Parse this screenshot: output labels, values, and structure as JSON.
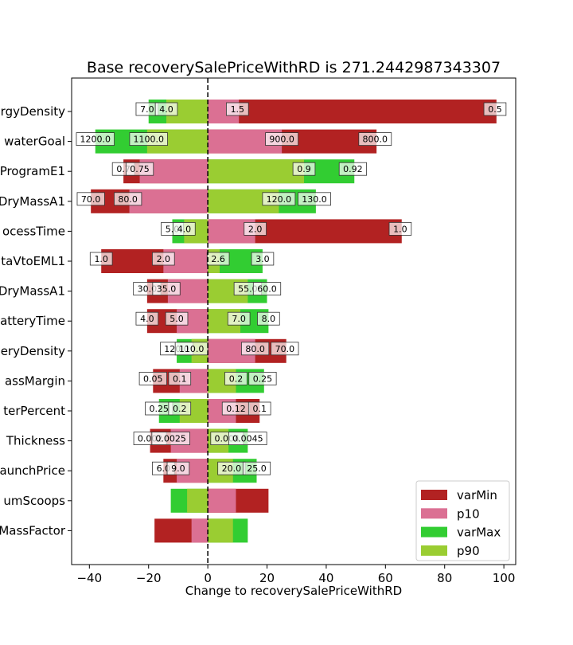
{
  "chart_data": {
    "type": "bar",
    "orientation": "horizontal",
    "style": "tornado",
    "title": "Base recoverySalePriceWithRD is 271.2442987343307",
    "xlabel": "Change to recoverySalePriceWithRD",
    "ylabel": "",
    "xlim": [
      -46,
      104
    ],
    "xticks": [
      -40,
      -20,
      0,
      20,
      40,
      60,
      80,
      100
    ],
    "baseline": 0,
    "grid": false,
    "legend_position": "lower-right",
    "category_labels": [
      "rgyDensity",
      "waterGoal",
      "ProgramE1",
      "DryMassA1",
      "ocessTime",
      "taVtoEML1",
      "DryMassA1",
      "atteryTime",
      "eryDensity",
      "assMargin",
      "terPercent",
      "Thickness",
      "aunchPrice",
      "umScoops",
      "MassFactor"
    ],
    "series": [
      {
        "name": "varMin",
        "color": "#b22222",
        "values": [
          97.5,
          57,
          -28.5,
          -39.5,
          65.5,
          -36,
          -20.5,
          -20.5,
          26.5,
          -18.5,
          17.5,
          -19.5,
          -15,
          20.5,
          -18
        ]
      },
      {
        "name": "p10",
        "color": "#db7093",
        "values": [
          10.5,
          25,
          -23,
          -26.5,
          16,
          -15,
          -13.5,
          -10.5,
          16,
          -9.5,
          9.5,
          -12.5,
          -10.5,
          9.5,
          -5.5
        ]
      },
      {
        "name": "varMax",
        "color": "#32cd32",
        "values": [
          -20,
          -38,
          49.5,
          36.5,
          -12,
          18.5,
          20,
          20.5,
          -10.5,
          19,
          -16.5,
          13.5,
          16.5,
          -12.5,
          13.5
        ]
      },
      {
        "name": "p90",
        "color": "#9acd32",
        "values": [
          -14,
          -20.5,
          32.5,
          24,
          -8,
          4,
          13.5,
          11,
          -5.5,
          9.5,
          -9.5,
          7,
          8.5,
          -7,
          8.5
        ]
      }
    ],
    "annotations": [
      {
        "row": 0,
        "x": -20.5,
        "text": "7.0"
      },
      {
        "row": 0,
        "x": -14,
        "text": "4.0"
      },
      {
        "row": 0,
        "x": 10,
        "text": "1.5"
      },
      {
        "row": 0,
        "x": 97,
        "text": "0.5"
      },
      {
        "row": 1,
        "x": -38,
        "text": "1200.0"
      },
      {
        "row": 1,
        "x": -20,
        "text": "1100.0"
      },
      {
        "row": 1,
        "x": 25,
        "text": "900.0"
      },
      {
        "row": 1,
        "x": 56.5,
        "text": "800.0"
      },
      {
        "row": 2,
        "x": -28.5,
        "text": "0.7"
      },
      {
        "row": 2,
        "x": -23,
        "text": "0.75"
      },
      {
        "row": 2,
        "x": 32.5,
        "text": "0.9"
      },
      {
        "row": 2,
        "x": 49,
        "text": "0.92"
      },
      {
        "row": 3,
        "x": -39.5,
        "text": "70.0"
      },
      {
        "row": 3,
        "x": -27,
        "text": "80.0"
      },
      {
        "row": 3,
        "x": 24,
        "text": "120.0"
      },
      {
        "row": 3,
        "x": 36,
        "text": "130.0"
      },
      {
        "row": 4,
        "x": -12,
        "text": "5.0"
      },
      {
        "row": 4,
        "x": -8,
        "text": "4.0"
      },
      {
        "row": 4,
        "x": 16,
        "text": "2.0"
      },
      {
        "row": 4,
        "x": 65,
        "text": "1.0"
      },
      {
        "row": 5,
        "x": -36,
        "text": "1.0"
      },
      {
        "row": 5,
        "x": -15,
        "text": "2.0"
      },
      {
        "row": 5,
        "x": 3.5,
        "text": "2.6"
      },
      {
        "row": 5,
        "x": 18.5,
        "text": "3.0"
      },
      {
        "row": 6,
        "x": -20.5,
        "text": "30.0"
      },
      {
        "row": 6,
        "x": -14,
        "text": "35.0"
      },
      {
        "row": 6,
        "x": 13.5,
        "text": "55.0"
      },
      {
        "row": 6,
        "x": 20,
        "text": "60.0"
      },
      {
        "row": 7,
        "x": -20.5,
        "text": "4.0"
      },
      {
        "row": 7,
        "x": -10.5,
        "text": "5.0"
      },
      {
        "row": 7,
        "x": 10.5,
        "text": "7.0"
      },
      {
        "row": 7,
        "x": 20.5,
        "text": "8.0"
      },
      {
        "row": 8,
        "x": -10.5,
        "text": "120.0"
      },
      {
        "row": 8,
        "x": -5.5,
        "text": "110.0"
      },
      {
        "row": 8,
        "x": 16,
        "text": "80.0"
      },
      {
        "row": 8,
        "x": 26,
        "text": "70.0"
      },
      {
        "row": 9,
        "x": -18.5,
        "text": "0.05"
      },
      {
        "row": 9,
        "x": -9.5,
        "text": "0.1"
      },
      {
        "row": 9,
        "x": 9.5,
        "text": "0.2"
      },
      {
        "row": 9,
        "x": 18.5,
        "text": "0.25"
      },
      {
        "row": 10,
        "x": -16.5,
        "text": "0.25"
      },
      {
        "row": 10,
        "x": -9.5,
        "text": "0.2"
      },
      {
        "row": 10,
        "x": 9.5,
        "text": "0.12"
      },
      {
        "row": 10,
        "x": 17.5,
        "text": "0.1"
      },
      {
        "row": 11,
        "x": -19.5,
        "text": "0.002"
      },
      {
        "row": 11,
        "x": -12.5,
        "text": "0.0025"
      },
      {
        "row": 11,
        "x": 6.5,
        "text": "0.004"
      },
      {
        "row": 11,
        "x": 13.5,
        "text": "0.0045"
      },
      {
        "row": 12,
        "x": -15,
        "text": "6.0"
      },
      {
        "row": 12,
        "x": -10,
        "text": "9.0"
      },
      {
        "row": 12,
        "x": 8,
        "text": "20.0"
      },
      {
        "row": 12,
        "x": 16.5,
        "text": "25.0"
      }
    ]
  }
}
